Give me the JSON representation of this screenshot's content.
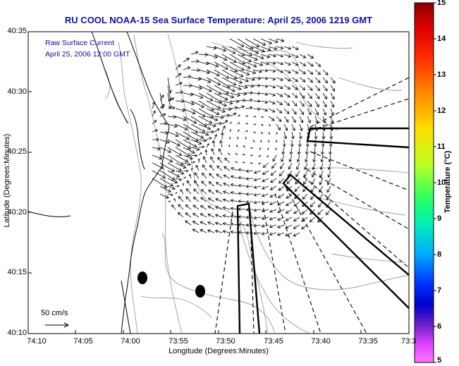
{
  "title": "RU COOL  NOAA-15  Sea Surface Temperature:  April 25, 2006 1219 GMT",
  "note": {
    "line1": "Raw Surface Current",
    "line2": "April 25, 2006 12:00 GMT"
  },
  "axes": {
    "xlabel": "Longitude (Degrees:Minutes)",
    "ylabel": "Latitude (Degrees:Minutes)",
    "x_ticks": [
      "74:10",
      "74:05",
      "74:00",
      "73:55",
      "73:50",
      "73:45",
      "73:40",
      "73:35",
      "73:3"
    ],
    "y_ticks": [
      "40:35",
      "40:30",
      "40:25",
      "40:20",
      "40:15",
      "40:10"
    ]
  },
  "colorbar": {
    "label": "Temperature (°C)",
    "ticks": [
      "15",
      "14",
      "13",
      "12",
      "11",
      "10",
      "9",
      "8",
      "7",
      "6",
      "5"
    ],
    "colors": [
      "#8b0000",
      "#ff0000",
      "#ff6600",
      "#ffaa00",
      "#ffff00",
      "#99ff33",
      "#00ff66",
      "#00ddcc",
      "#0099ff",
      "#0000ff",
      "#6600cc",
      "#cc33ff",
      "#ff66ff"
    ]
  },
  "scale": {
    "label": "50 cm/s"
  },
  "colors": {
    "title": "#1010a0",
    "contour": "#999999",
    "coast": "#000000"
  }
}
